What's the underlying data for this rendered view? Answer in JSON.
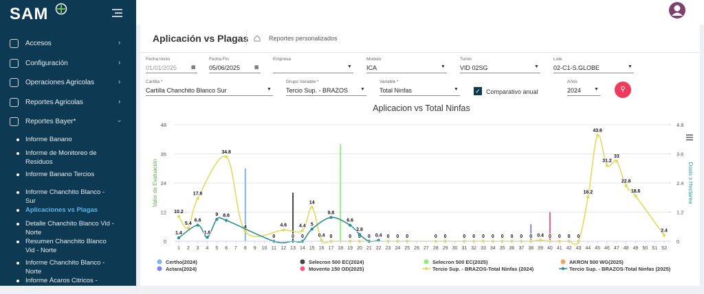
{
  "sidebar": {
    "logo": "SAM",
    "menu": [
      "Accesos",
      "Configuración",
      "Operaciones Agricolas",
      "Reportes Agricolas",
      "Reportes Bayer*"
    ],
    "submenu": [
      "Informe Banano",
      "Informe de Monitoreo de Residuos",
      "Informe Banano Tercios",
      "Informe Chanchito Blanco - Sur",
      "Aplicaciones vs Plagas",
      "Detalle Chanchito Blanco Vid - Norte",
      "Resumen Chanchito Blanco Vid - Norte",
      "Informe Chanchito Blanco - Norte",
      "Informe Ácaros Citricos - Centro"
    ]
  },
  "header": {
    "title": "Aplicación vs Plagas",
    "breadcrumb": "Reportes personalizados"
  },
  "filters": {
    "row1": [
      {
        "label": "Fecha Inicio",
        "value": "01/01/2025"
      },
      {
        "label": "Fecha Fin",
        "value": "05/06/2025"
      },
      {
        "label": "Empresa"
      },
      {
        "label": "Modulo",
        "value": "ICA"
      },
      {
        "label": "Turno",
        "value": "VID 02SG"
      },
      {
        "label": "Lote",
        "value": "02-C1-S.GLOBE"
      }
    ],
    "row2": [
      {
        "label": "Cartilla *",
        "value": "Cartilla Chanchito Blanco Sur"
      },
      {
        "label": "Grupo Variable *",
        "value": "Tercio Sup. - BRAZOS"
      },
      {
        "label": "Variable *",
        "value": "Total Ninfas"
      }
    ],
    "checkbox": "Comparativo anual",
    "year": {
      "label": "Años",
      "value": "2024"
    }
  },
  "chart_data": {
    "type": "combo",
    "title": "Aplicacion vs Total Ninfas",
    "y_label": "Valor de Evaluación",
    "y2_label": "Dosis x Hectarea",
    "xlim": [
      0.5,
      52.5
    ],
    "xticks": [
      1,
      2,
      3,
      4,
      5,
      6,
      7,
      8,
      9,
      10,
      11,
      12,
      13,
      14,
      15,
      16,
      17,
      18,
      19,
      20,
      21,
      22,
      23,
      24,
      25,
      26,
      27,
      28,
      29,
      30,
      31,
      32,
      33,
      34,
      35,
      36,
      37,
      38,
      39,
      40,
      41,
      42,
      43,
      44,
      45,
      46,
      47,
      48,
      49,
      50,
      51,
      52
    ],
    "ylim": [
      0,
      48
    ],
    "yticks": [
      0,
      12,
      24,
      36,
      48
    ],
    "y2lim": [
      0,
      4.8
    ],
    "y2ticks": [
      0,
      1.2,
      2.4,
      3.6,
      4.8
    ],
    "series": [
      {
        "name": "Certho(2024)",
        "color": "#7cb5ec",
        "type": "bar",
        "axis": "y2",
        "x": [
          8
        ],
        "values": [
          3.0
        ]
      },
      {
        "name": "Selecron 500 EC(2024)",
        "color": "#434348",
        "type": "bar",
        "axis": "y2",
        "x": [
          13
        ],
        "values": [
          2.0
        ]
      },
      {
        "name": "Selecron 500 EC(2025)",
        "color": "#90ed7d",
        "type": "bar",
        "axis": "y2",
        "x": [
          18
        ],
        "values": [
          4.0
        ]
      },
      {
        "name": "AKRON 500 WG(2025)",
        "color": "#f7a35c",
        "type": "bar",
        "axis": "y2",
        "x": [],
        "values": []
      },
      {
        "name": "Actara(2024)",
        "color": "#8085e9",
        "type": "bar",
        "axis": "y2",
        "x": [
          38
        ],
        "values": [
          0.7
        ]
      },
      {
        "name": "Movento 150 OD(2025)",
        "color": "#f15c80",
        "type": "bar",
        "axis": "y2",
        "x": [
          40
        ],
        "values": [
          1.2
        ]
      },
      {
        "name": "Tercio Sup. - BRAZOS-Total Ninfas (2024)",
        "color": "#e4d95c",
        "type": "line",
        "x": [
          1,
          2,
          3,
          6,
          8,
          12,
          14,
          15,
          16,
          17,
          19,
          20,
          23,
          24,
          25,
          28,
          29,
          31,
          32,
          33,
          34,
          35,
          36,
          37,
          38,
          39,
          40,
          41,
          42,
          43,
          44,
          45,
          46,
          47,
          48,
          49,
          52
        ],
        "values": [
          10.2,
          5.4,
          17.6,
          34.8,
          4,
          4.6,
          4.4,
          14,
          0.4,
          0,
          0,
          0,
          0,
          0,
          0,
          0,
          0,
          0,
          0,
          0,
          0,
          0,
          0,
          0,
          0,
          0.4,
          0,
          0,
          0,
          0,
          18.2,
          43.6,
          31.2,
          33,
          22.8,
          18.6,
          2.4
        ]
      },
      {
        "name": "Tercio Sup. - BRAZOS-Total Ninfas (2025)",
        "color": "#2b908f",
        "type": "line",
        "x": [
          1,
          3,
          4,
          5,
          6,
          11,
          13,
          14,
          15,
          17,
          19,
          20,
          21,
          22
        ],
        "values": [
          1.4,
          6.6,
          1.6,
          9,
          8.6,
          0,
          0,
          0,
          5,
          9.8,
          6.6,
          2.8,
          0,
          0.4
        ]
      }
    ]
  }
}
